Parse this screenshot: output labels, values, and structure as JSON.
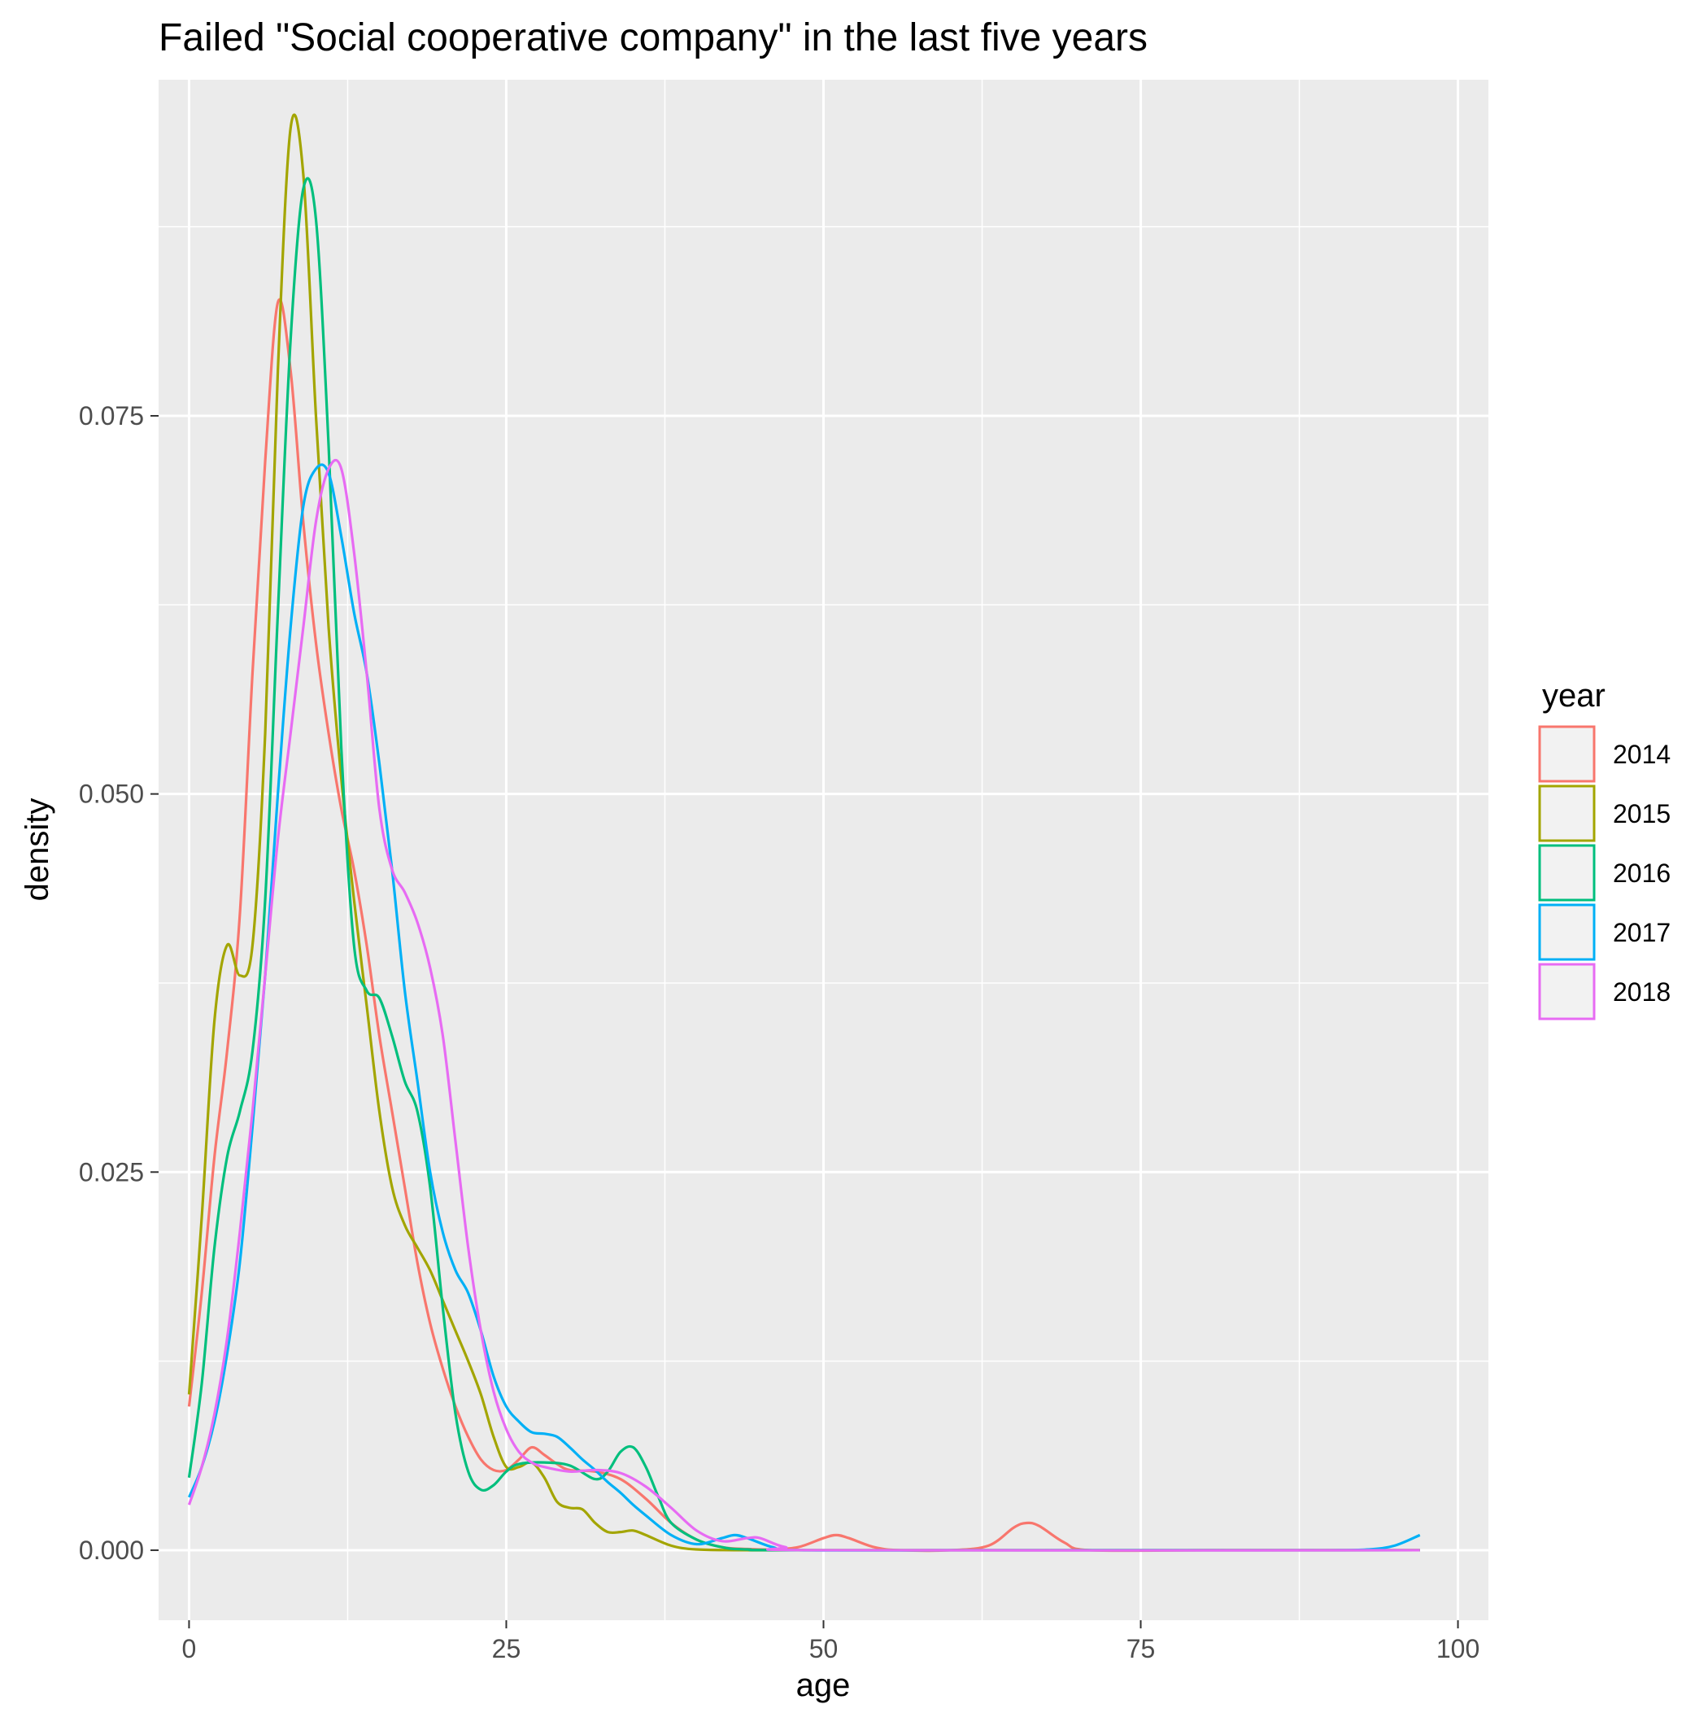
{
  "chart_data": {
    "type": "line",
    "title": "Failed \"Social cooperative company\" in the last five years",
    "xlabel": "age",
    "ylabel": "density",
    "xlim": [
      -2.4,
      102.4
    ],
    "ylim": [
      -0.00463,
      0.09722
    ],
    "x_ticks": [
      {
        "value": 0,
        "label": "0"
      },
      {
        "value": 25,
        "label": "25"
      },
      {
        "value": 50,
        "label": "50"
      },
      {
        "value": 75,
        "label": "75"
      },
      {
        "value": 100,
        "label": "100"
      }
    ],
    "y_ticks": [
      {
        "value": 0.0,
        "label": "0.000"
      },
      {
        "value": 0.025,
        "label": "0.025"
      },
      {
        "value": 0.05,
        "label": "0.050"
      },
      {
        "value": 0.075,
        "label": "0.075"
      }
    ],
    "grid": true,
    "legend": {
      "title": "year",
      "position": "right"
    },
    "series": [
      {
        "name": "2014",
        "color": "#F8766D",
        "points": [
          [
            0,
            0.0095
          ],
          [
            1,
            0.017
          ],
          [
            2,
            0.026
          ],
          [
            3,
            0.033
          ],
          [
            4,
            0.042
          ],
          [
            5,
            0.058
          ],
          [
            6,
            0.072
          ],
          [
            7,
            0.0825
          ],
          [
            8,
            0.078
          ],
          [
            9,
            0.068
          ],
          [
            10,
            0.06
          ],
          [
            11,
            0.054
          ],
          [
            12,
            0.049
          ],
          [
            13,
            0.045
          ],
          [
            14,
            0.04
          ],
          [
            15,
            0.034
          ],
          [
            16,
            0.029
          ],
          [
            17,
            0.024
          ],
          [
            18,
            0.019
          ],
          [
            19,
            0.015
          ],
          [
            20,
            0.012
          ],
          [
            21,
            0.0095
          ],
          [
            22,
            0.0075
          ],
          [
            23,
            0.006
          ],
          [
            24,
            0.0053
          ],
          [
            25,
            0.0053
          ],
          [
            26,
            0.006
          ],
          [
            27,
            0.0068
          ],
          [
            28,
            0.0063
          ],
          [
            29,
            0.0057
          ],
          [
            30,
            0.0053
          ],
          [
            32,
            0.0052
          ],
          [
            34,
            0.0047
          ],
          [
            36,
            0.0034
          ],
          [
            38,
            0.0018
          ],
          [
            40,
            0.0007
          ],
          [
            42,
            0.0002
          ],
          [
            44,
            8e-05
          ],
          [
            46,
            5e-05
          ],
          [
            48,
            0.0002
          ],
          [
            50,
            0.0008
          ],
          [
            51,
            0.001
          ],
          [
            52,
            0.0008
          ],
          [
            54,
            0.0002
          ],
          [
            56,
            0.0
          ],
          [
            60,
            0.0
          ],
          [
            63,
            0.0003
          ],
          [
            65,
            0.0015
          ],
          [
            66,
            0.0018
          ],
          [
            67,
            0.0016
          ],
          [
            69,
            0.0005
          ],
          [
            71,
            0.0
          ],
          [
            80,
            0.0
          ],
          [
            90,
            0.0
          ],
          [
            97,
            0.0
          ]
        ]
      },
      {
        "name": "2015",
        "color": "#A3A500",
        "points": [
          [
            0,
            0.0103
          ],
          [
            1,
            0.022
          ],
          [
            2,
            0.035
          ],
          [
            3,
            0.04
          ],
          [
            4,
            0.038
          ],
          [
            5,
            0.04
          ],
          [
            6,
            0.054
          ],
          [
            7,
            0.078
          ],
          [
            8,
            0.094
          ],
          [
            9,
            0.091
          ],
          [
            10,
            0.075
          ],
          [
            11,
            0.061
          ],
          [
            12,
            0.051
          ],
          [
            13,
            0.043
          ],
          [
            14,
            0.036
          ],
          [
            15,
            0.029
          ],
          [
            16,
            0.024
          ],
          [
            17,
            0.0215
          ],
          [
            18,
            0.02
          ],
          [
            19,
            0.0185
          ],
          [
            20,
            0.0165
          ],
          [
            21,
            0.0145
          ],
          [
            22,
            0.0125
          ],
          [
            23,
            0.0103
          ],
          [
            24,
            0.0075
          ],
          [
            25,
            0.0055
          ],
          [
            26,
            0.0055
          ],
          [
            27,
            0.0058
          ],
          [
            28,
            0.0048
          ],
          [
            29,
            0.0032
          ],
          [
            30,
            0.0028
          ],
          [
            31,
            0.0027
          ],
          [
            32,
            0.0018
          ],
          [
            33,
            0.0012
          ],
          [
            34,
            0.0012
          ],
          [
            35,
            0.0013
          ],
          [
            36,
            0.001
          ],
          [
            38,
            0.0003
          ],
          [
            40,
            5e-05
          ],
          [
            44,
            0.0
          ],
          [
            50,
            0.0
          ],
          [
            97,
            0.0
          ]
        ]
      },
      {
        "name": "2016",
        "color": "#00BF7D",
        "points": [
          [
            0,
            0.0048
          ],
          [
            1,
            0.011
          ],
          [
            2,
            0.02
          ],
          [
            3,
            0.026
          ],
          [
            4,
            0.029
          ],
          [
            5,
            0.033
          ],
          [
            6,
            0.043
          ],
          [
            7,
            0.062
          ],
          [
            8,
            0.08
          ],
          [
            9,
            0.09
          ],
          [
            10,
            0.088
          ],
          [
            11,
            0.073
          ],
          [
            12,
            0.053
          ],
          [
            13,
            0.04
          ],
          [
            14,
            0.037
          ],
          [
            15,
            0.0365
          ],
          [
            16,
            0.034
          ],
          [
            17,
            0.031
          ],
          [
            18,
            0.029
          ],
          [
            19,
            0.024
          ],
          [
            20,
            0.016
          ],
          [
            21,
            0.009
          ],
          [
            22,
            0.0052
          ],
          [
            23,
            0.004
          ],
          [
            24,
            0.0043
          ],
          [
            25,
            0.0052
          ],
          [
            26,
            0.0057
          ],
          [
            28,
            0.0058
          ],
          [
            30,
            0.0056
          ],
          [
            32,
            0.0047
          ],
          [
            33,
            0.0052
          ],
          [
            34,
            0.0065
          ],
          [
            35,
            0.0068
          ],
          [
            36,
            0.0055
          ],
          [
            37,
            0.0035
          ],
          [
            38,
            0.0018
          ],
          [
            40,
            0.0007
          ],
          [
            42,
            0.0002
          ],
          [
            44,
            5e-05
          ],
          [
            50,
            0.0
          ],
          [
            97,
            0.0
          ]
        ]
      },
      {
        "name": "2017",
        "color": "#00B0F6",
        "points": [
          [
            0,
            0.0035
          ],
          [
            1,
            0.0055
          ],
          [
            2,
            0.0085
          ],
          [
            3,
            0.013
          ],
          [
            4,
            0.019
          ],
          [
            5,
            0.028
          ],
          [
            6,
            0.038
          ],
          [
            7,
            0.05
          ],
          [
            8,
            0.061
          ],
          [
            9,
            0.069
          ],
          [
            10,
            0.0715
          ],
          [
            11,
            0.0712
          ],
          [
            12,
            0.067
          ],
          [
            13,
            0.062
          ],
          [
            14,
            0.058
          ],
          [
            15,
            0.052
          ],
          [
            16,
            0.045
          ],
          [
            17,
            0.037
          ],
          [
            18,
            0.031
          ],
          [
            19,
            0.025
          ],
          [
            20,
            0.021
          ],
          [
            21,
            0.0185
          ],
          [
            22,
            0.017
          ],
          [
            23,
            0.0145
          ],
          [
            24,
            0.0115
          ],
          [
            25,
            0.0095
          ],
          [
            26,
            0.0085
          ],
          [
            27,
            0.0078
          ],
          [
            28,
            0.0077
          ],
          [
            29,
            0.0075
          ],
          [
            30,
            0.0068
          ],
          [
            31,
            0.006
          ],
          [
            32,
            0.0053
          ],
          [
            33,
            0.0045
          ],
          [
            34,
            0.0038
          ],
          [
            35,
            0.003
          ],
          [
            36,
            0.0023
          ],
          [
            38,
            0.001
          ],
          [
            40,
            0.0004
          ],
          [
            42,
            0.0008
          ],
          [
            43,
            0.001
          ],
          [
            44,
            0.0008
          ],
          [
            46,
            0.0002
          ],
          [
            48,
            0.0
          ],
          [
            60,
            0.0
          ],
          [
            80,
            0.0
          ],
          [
            90,
            0.0
          ],
          [
            93,
            5e-05
          ],
          [
            95,
            0.0003
          ],
          [
            97,
            0.001
          ]
        ]
      },
      {
        "name": "2018",
        "color": "#E76BF3",
        "points": [
          [
            0,
            0.003
          ],
          [
            1,
            0.0055
          ],
          [
            2,
            0.009
          ],
          [
            3,
            0.014
          ],
          [
            4,
            0.021
          ],
          [
            5,
            0.029
          ],
          [
            6,
            0.038
          ],
          [
            7,
            0.047
          ],
          [
            8,
            0.054
          ],
          [
            9,
            0.061
          ],
          [
            10,
            0.068
          ],
          [
            11,
            0.0715
          ],
          [
            12,
            0.0715
          ],
          [
            13,
            0.066
          ],
          [
            14,
            0.058
          ],
          [
            15,
            0.049
          ],
          [
            16,
            0.045
          ],
          [
            17,
            0.0435
          ],
          [
            18,
            0.0415
          ],
          [
            19,
            0.0385
          ],
          [
            20,
            0.034
          ],
          [
            21,
            0.027
          ],
          [
            22,
            0.02
          ],
          [
            23,
            0.0145
          ],
          [
            24,
            0.0105
          ],
          [
            25,
            0.008
          ],
          [
            26,
            0.0065
          ],
          [
            27,
            0.0058
          ],
          [
            28,
            0.0055
          ],
          [
            30,
            0.0052
          ],
          [
            32,
            0.0053
          ],
          [
            34,
            0.0051
          ],
          [
            36,
            0.0042
          ],
          [
            38,
            0.0028
          ],
          [
            40,
            0.0013
          ],
          [
            42,
            0.0006
          ],
          [
            44,
            0.0008
          ],
          [
            45,
            0.0008
          ],
          [
            47,
            0.0002
          ],
          [
            50,
            0.0
          ],
          [
            97,
            0.0
          ]
        ]
      }
    ]
  }
}
